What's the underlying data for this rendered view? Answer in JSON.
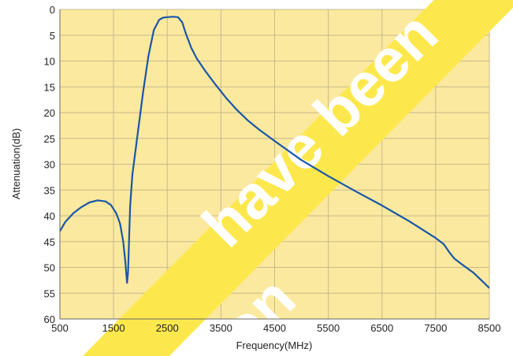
{
  "chart_data": {
    "type": "line",
    "xlabel": "Frequency(MHz)",
    "ylabel": "Attenuation(dB)",
    "xlim": [
      500,
      8500
    ],
    "ylim": [
      0,
      60
    ],
    "y_inverted": true,
    "grid": true,
    "xticks": [
      "500",
      "1500",
      "2500",
      "3500",
      "4500",
      "5500",
      "6500",
      "7500",
      "8500"
    ],
    "yticks": [
      "0",
      "5",
      "10",
      "15",
      "20",
      "25",
      "30",
      "35",
      "40",
      "45",
      "50",
      "55",
      "60"
    ],
    "series": [
      {
        "color": "#1a56a8",
        "x": [
          500,
          600,
          750,
          900,
          1050,
          1200,
          1350,
          1450,
          1550,
          1620,
          1680,
          1720,
          1750,
          1770,
          1790,
          1810,
          1850,
          1950,
          2050,
          2150,
          2250,
          2350,
          2420,
          2480,
          2520,
          2600,
          2700,
          2780,
          2850,
          2950,
          3050,
          3200,
          3400,
          3600,
          3800,
          4000,
          4200,
          4500,
          5000,
          5500,
          6000,
          6500,
          7000,
          7300,
          7500,
          7650,
          7750,
          7850,
          8000,
          8200,
          8400,
          8500
        ],
        "y": [
          43,
          41.2,
          39.5,
          38.3,
          37.4,
          37.0,
          37.2,
          37.9,
          39.5,
          41.5,
          45,
          49,
          53,
          51,
          44,
          38,
          32,
          24,
          16,
          9,
          4,
          2,
          1.6,
          1.5,
          1.5,
          1.4,
          1.5,
          2.5,
          4.8,
          7.5,
          9.5,
          11.8,
          14.6,
          17.2,
          19.5,
          21.5,
          23.2,
          25.5,
          29.2,
          32.3,
          35.2,
          38.0,
          41.0,
          43.0,
          44.3,
          45.5,
          47.0,
          48.3,
          49.5,
          51.0,
          53.0,
          54.0
        ]
      }
    ]
  },
  "colors": {
    "plot_background": "#fbe99f",
    "grid": "#c7b98e",
    "curve": "#1a56a8",
    "watermark_stripe": "#fce84d",
    "watermark_text": "#ffffff"
  },
  "watermark": {
    "line1": "have been",
    "line2": "on"
  }
}
